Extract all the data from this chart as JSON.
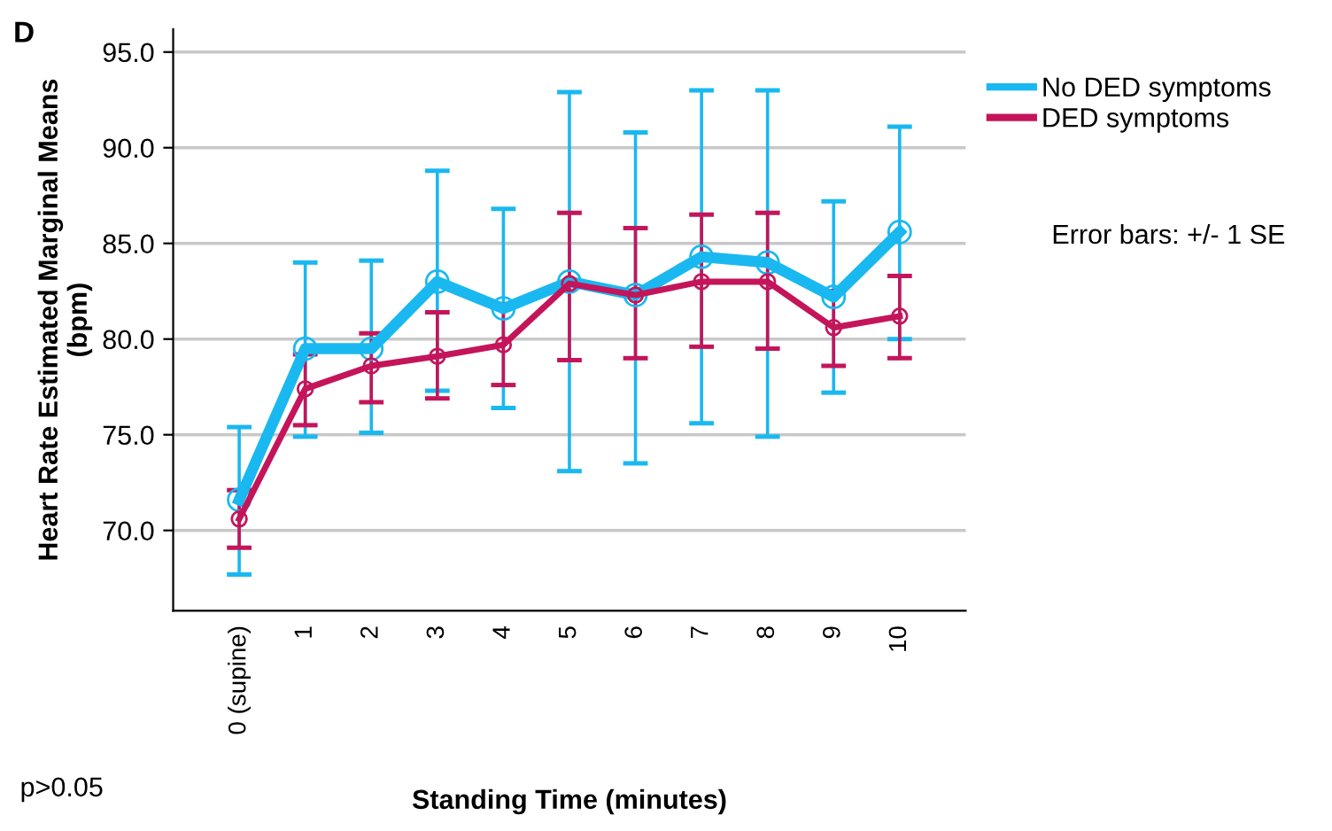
{
  "chart_data": {
    "type": "line",
    "title": "D",
    "xlabel": "Standing Time (minutes)",
    "ylabel": "Heart Rate Estimated Marginal Means\n(bpm)",
    "categories": [
      "0 (supine)",
      "1",
      "2",
      "3",
      "4",
      "5",
      "6",
      "7",
      "8",
      "9",
      "10"
    ],
    "series": [
      {
        "name": "No DED symptoms",
        "color": "#1ab8f0",
        "values": [
          71.6,
          79.5,
          79.5,
          83.0,
          81.6,
          83.0,
          82.3,
          84.3,
          84.0,
          82.2,
          85.6
        ],
        "errors": [
          [
            67.7,
            75.4
          ],
          [
            74.9,
            84.0
          ],
          [
            75.1,
            84.1
          ],
          [
            77.3,
            88.8
          ],
          [
            76.4,
            86.8
          ],
          [
            73.1,
            92.9
          ],
          [
            73.5,
            90.8
          ],
          [
            75.6,
            93.0
          ],
          [
            74.9,
            93.0
          ],
          [
            77.2,
            87.2
          ],
          [
            80.0,
            91.1
          ]
        ]
      },
      {
        "name": "DED symptoms",
        "color": "#c4155a",
        "values": [
          70.6,
          77.4,
          78.6,
          79.1,
          79.7,
          82.9,
          82.3,
          83.0,
          83.0,
          80.6,
          81.2
        ],
        "errors": [
          [
            69.1,
            72.1
          ],
          [
            75.5,
            79.2
          ],
          [
            76.7,
            80.3
          ],
          [
            76.9,
            81.4
          ],
          [
            77.6,
            81.8
          ],
          [
            78.9,
            86.6
          ],
          [
            79.0,
            85.8
          ],
          [
            79.6,
            86.5
          ],
          [
            79.5,
            86.6
          ],
          [
            78.6,
            82.5
          ],
          [
            79.0,
            83.3
          ]
        ]
      }
    ],
    "ylim": [
      65.8,
      96.2
    ],
    "yticks": [
      {
        "value": 70,
        "label": "70.0"
      },
      {
        "value": 75,
        "label": "75.0"
      },
      {
        "value": 80,
        "label": "80.0"
      },
      {
        "value": 85,
        "label": "85.0"
      },
      {
        "value": 90,
        "label": "90.0"
      },
      {
        "value": 95,
        "label": "95.0"
      }
    ],
    "grid": "y",
    "legend": "top right",
    "marker": "circle",
    "line_style": "solid",
    "annotations": [
      "Error bars: +/- 1 SE",
      "p>0.05"
    ]
  }
}
